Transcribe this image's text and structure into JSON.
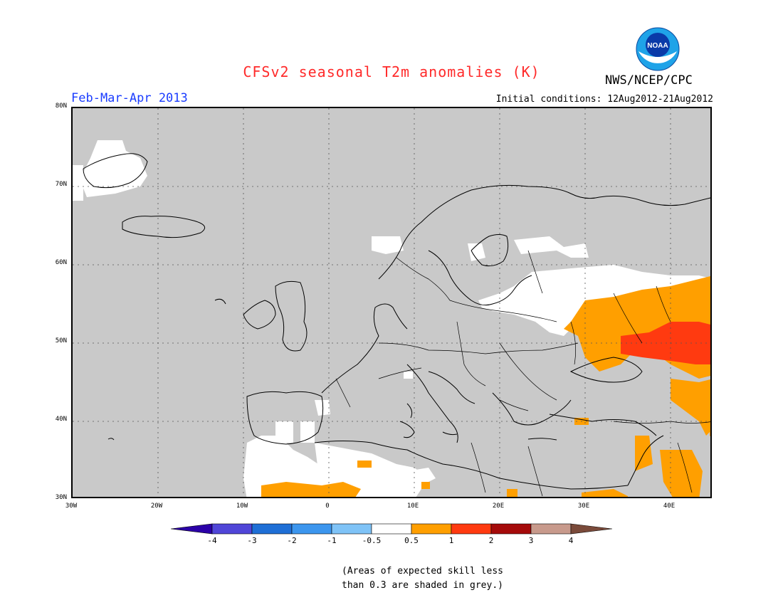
{
  "title": "CFSv2 seasonal T2m anomalies (K)",
  "agency": "NWS/NCEP/CPC",
  "logo_text": "NOAA",
  "period": "Feb-Mar-Apr 2013",
  "initial_conditions": "Initial conditions: 12Aug2012-21Aug2012",
  "lat_ticks": [
    "80N",
    "70N",
    "60N",
    "50N",
    "40N",
    "30N"
  ],
  "lon_ticks": [
    "30W",
    "20W",
    "10W",
    "0",
    "10E",
    "20E",
    "30E",
    "40E"
  ],
  "colorbar": {
    "labels": [
      "-4",
      "-3",
      "-2",
      "-1",
      "-0.5",
      "0.5",
      "1",
      "2",
      "3",
      "4"
    ],
    "colors": [
      "#2b00a8",
      "#5046d8",
      "#1f6fd6",
      "#3c96ee",
      "#7fc3f7",
      "#ffffff",
      "#ff9f00",
      "#ff3a10",
      "#a50a0a",
      "#c89a8c",
      "#7a4a3a"
    ]
  },
  "note_line1": "(Areas of expected skill less",
  "note_line2": "than 0.3 are shaded in grey.)",
  "colors": {
    "grey": "#c9c9c9",
    "white": "#ffffff",
    "orange": "#ff9f00",
    "red": "#ff3a10"
  }
}
